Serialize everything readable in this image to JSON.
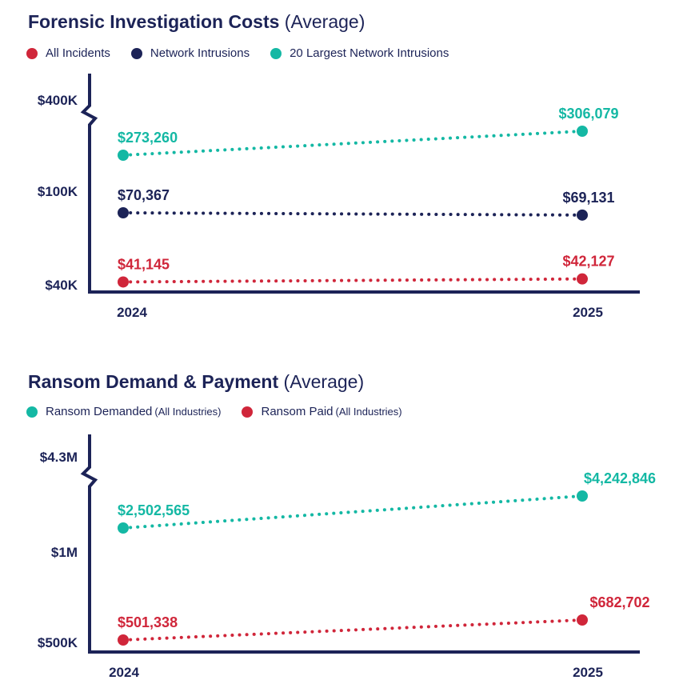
{
  "colors": {
    "navy": "#1c2357",
    "red": "#d0263a",
    "teal": "#14b8a4"
  },
  "chart_data": [
    {
      "type": "line",
      "title": "Forensic Investigation Costs",
      "subtitle": "(Average)",
      "categories": [
        "2024",
        "2025"
      ],
      "y_tick_labels": [
        "$400K",
        "$100K",
        "$40K"
      ],
      "y_scale": "broken",
      "series": [
        {
          "name": "All Incidents",
          "color": "#d0263a",
          "values": [
            41145,
            42127
          ],
          "labels": [
            "$41,145",
            "$42,127"
          ]
        },
        {
          "name": "Network Intrusions",
          "color": "#1c2357",
          "values": [
            70367,
            69131
          ],
          "labels": [
            "$70,367",
            "$69,131"
          ]
        },
        {
          "name": "20 Largest Network Intrusions",
          "color": "#14b8a4",
          "values": [
            273260,
            306079
          ],
          "labels": [
            "$273,260",
            "$306,079"
          ]
        }
      ]
    },
    {
      "type": "line",
      "title": "Ransom Demand & Payment",
      "subtitle": "(Average)",
      "categories": [
        "2024",
        "2025"
      ],
      "y_tick_labels": [
        "$4.3M",
        "$1M",
        "$500K"
      ],
      "y_scale": "broken",
      "series": [
        {
          "name": "Ransom Demanded",
          "note": "(All Industries)",
          "color": "#14b8a4",
          "values": [
            2502565,
            4242846
          ],
          "labels": [
            "$2,502,565",
            "$4,242,846"
          ]
        },
        {
          "name": "Ransom Paid",
          "note": "(All Industries)",
          "color": "#d0263a",
          "values": [
            501338,
            682702
          ],
          "labels": [
            "$501,338",
            "$682,702"
          ]
        }
      ]
    }
  ]
}
